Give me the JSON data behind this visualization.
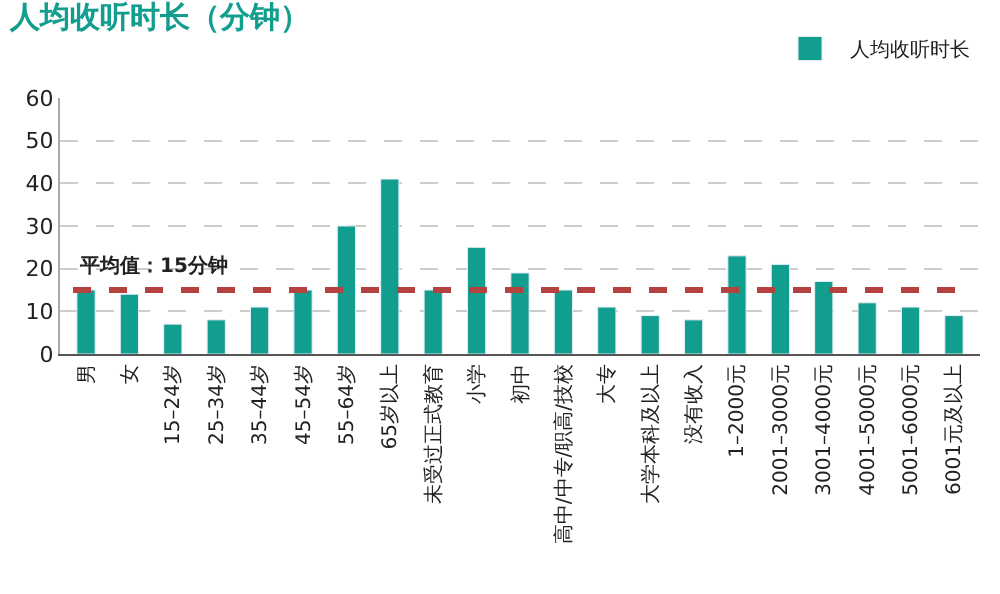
{
  "chart_data": {
    "type": "bar",
    "title": "人均收听时长（分钟）",
    "categories": [
      "男",
      "女",
      "15–24岁",
      "25–34岁",
      "35–44岁",
      "45–54岁",
      "55–64岁",
      "65岁以上",
      "未受过正式教育",
      "小学",
      "初中",
      "高中/中专/职高/技校",
      "大专",
      "大学本科及以上",
      "没有收入",
      "1–2000元",
      "2001–3000元",
      "3001–4000元",
      "4001–5000元",
      "5001–6000元",
      "6001元及以上"
    ],
    "series": [
      {
        "name": "人均收听时长",
        "color": "#129e8f",
        "values": [
          15,
          14,
          7,
          8,
          11,
          15,
          30,
          41,
          15,
          25,
          19,
          15,
          11,
          9,
          8,
          23,
          21,
          17,
          12,
          11,
          9
        ]
      }
    ],
    "ylim": [
      0,
      60
    ],
    "yticks": [
      0,
      10,
      20,
      30,
      40,
      50,
      60
    ],
    "grid": "y",
    "legend": "top right",
    "ref_lines": [
      {
        "axis": "y",
        "value": 15,
        "label": "平均值：15分钟",
        "color": "#b5423f",
        "line_style": "dashed"
      }
    ]
  }
}
